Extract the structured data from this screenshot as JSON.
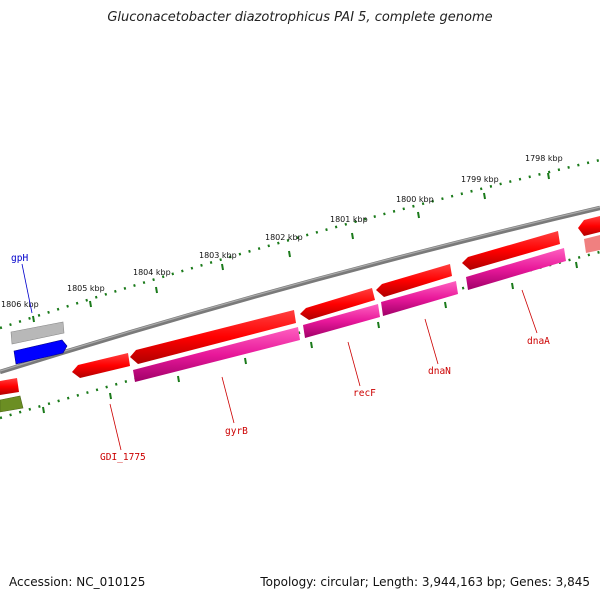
{
  "title": "Gluconacetobacter diazotrophicus PAI 5, complete genome",
  "footer": {
    "accession": "Accession: NC_010125",
    "topology": "Topology: circular; Length: 3,944,163 bp; Genes: 3,845"
  },
  "kbp_labels": [
    "1806 kbp",
    "1805 kbp",
    "1804 kbp",
    "1803 kbp",
    "1802 kbp",
    "1801 kbp",
    "1800 kbp",
    "1799 kbp",
    "1798 kbp"
  ],
  "gene_labels": [
    "gpH",
    "GDI_1775",
    "gyrB",
    "recF",
    "dnaN",
    "dnaA"
  ],
  "colors": {
    "backbone": "#808080",
    "ruler": "#1a7a1a",
    "gene_red": "#ff0000",
    "gene_magenta": "#e8189a",
    "gene_blue": "#0000ff",
    "gene_gray": "#b8b8b8",
    "gene_olive": "#6b8e23",
    "label_red": "#cc0000",
    "label_blue": "#0000cc"
  }
}
